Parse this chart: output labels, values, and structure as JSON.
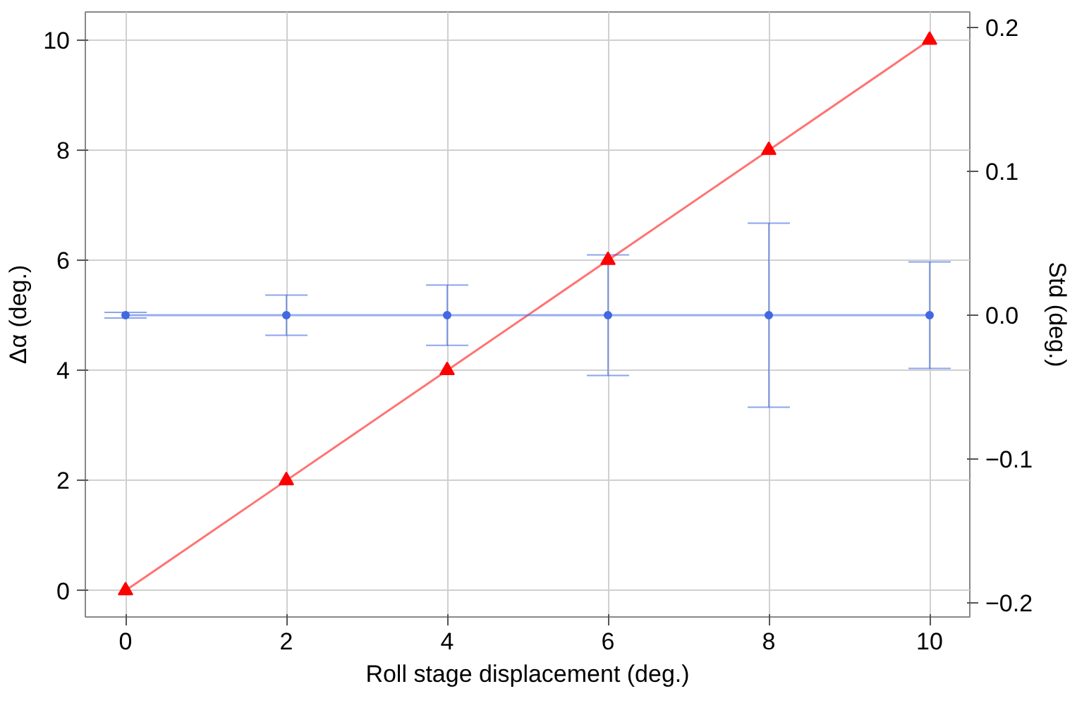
{
  "chart_data": {
    "type": "line",
    "xlabel": "Roll stage displacement (deg.)",
    "ylabel": "Δα (deg.)",
    "y2label": "Std (deg.)",
    "x": [
      0,
      2,
      4,
      6,
      8,
      10
    ],
    "series": [
      {
        "color": "#ff0000",
        "values": [
          0,
          2,
          4,
          6,
          8,
          10
        ],
        "marker": "triangle"
      },
      {
        "color": "#4169e1",
        "axis": "y2",
        "values": [
          0,
          0,
          0,
          0,
          0,
          0
        ],
        "errors": [
          0.002,
          0.014,
          0.021,
          0.042,
          0.064,
          0.037
        ],
        "marker": "circle"
      }
    ],
    "xlim": [
      -0.5,
      10.5
    ],
    "xticks": [
      0,
      2,
      4,
      6,
      8,
      10
    ],
    "ylim": [
      -0.48,
      10.51
    ],
    "yticks": [
      0,
      2,
      4,
      6,
      8,
      10
    ],
    "y2lim": [
      -0.21,
      0.211
    ],
    "y2ticks": [
      {
        "value": -0.2,
        "label": "−0.2"
      },
      {
        "value": -0.1,
        "label": "−0.1"
      },
      {
        "value": 0,
        "label": "0.0"
      },
      {
        "value": 0.1,
        "label": "0.1"
      },
      {
        "value": 0.2,
        "label": "0.2"
      }
    ],
    "grid": true,
    "line_style": "solid"
  }
}
